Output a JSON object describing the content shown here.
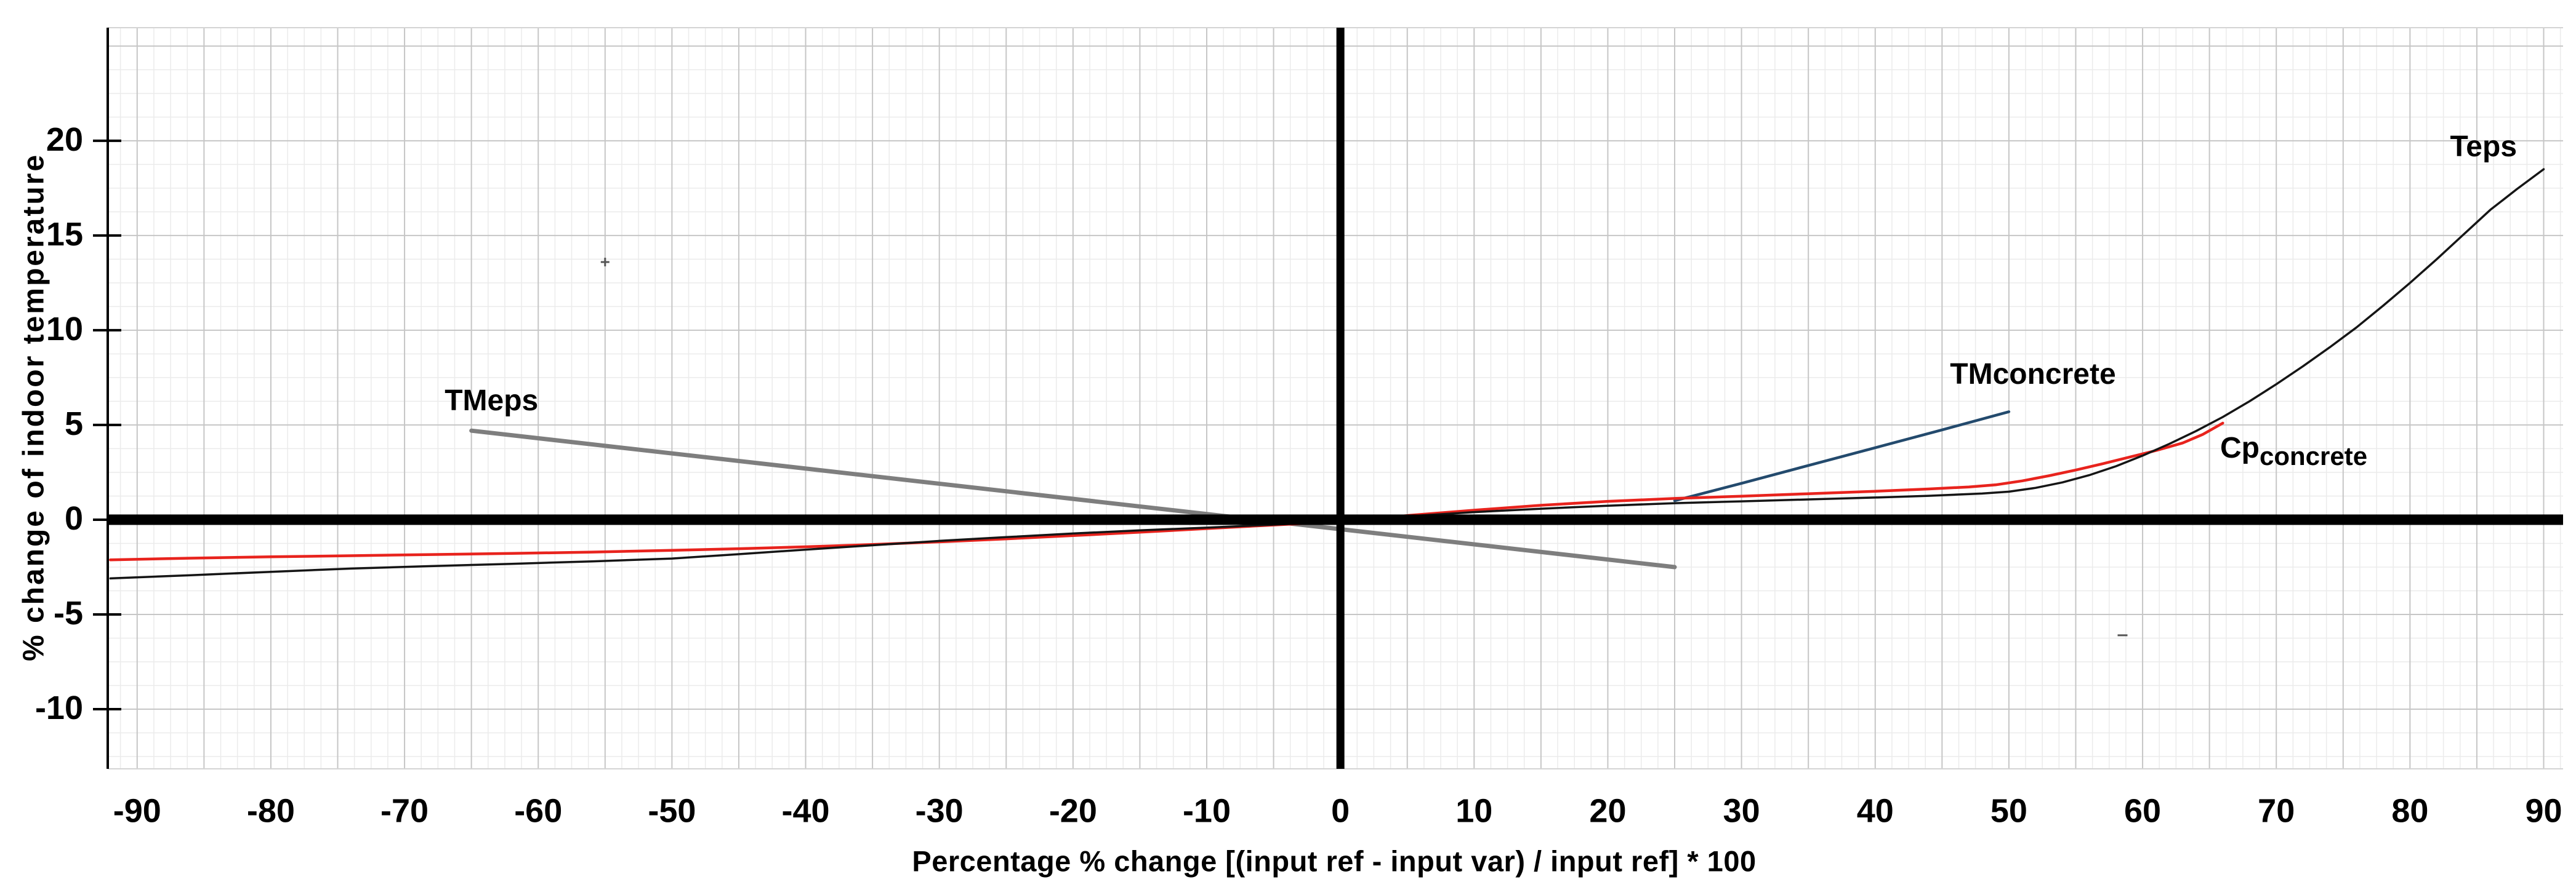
{
  "figure": {
    "background": "#ffffff",
    "text_color": "#000000"
  },
  "chart_data": {
    "type": "line",
    "title": "",
    "xlabel": "Percentage % change  [(input ref - input var) / input ref] * 100",
    "ylabel": "% change of indoor temperature",
    "xlim": [
      -92.2,
      91.45
    ],
    "ylim": [
      -13.15,
      25.97
    ],
    "x_tick_labels": [
      -90,
      -80,
      -70,
      -60,
      -50,
      -40,
      -30,
      -20,
      -10,
      0,
      10,
      20,
      30,
      40,
      50,
      60,
      70,
      80,
      90
    ],
    "y_tick_labels": [
      20,
      15,
      10,
      5,
      0,
      -5,
      -10
    ],
    "grid": {
      "on": true,
      "minor_step": 1.25,
      "major_step": 5,
      "minor_color": "#ebebeb",
      "major_color": "#c6c6c6",
      "border_color": "#d4d4d4"
    },
    "axes": {
      "zero_line_color": "#000000",
      "left_axis_color": "#000000"
    },
    "legend_position": "inline-labels",
    "series": [
      {
        "name": "TMeps",
        "color": "#7e7e7e",
        "width": 7,
        "label": {
          "text": "TMeps",
          "x": -63.5,
          "y": 6.2,
          "anchor": "middle"
        },
        "points": [
          [
            -65,
            4.7
          ],
          [
            25,
            -2.5
          ]
        ]
      },
      {
        "name": "TMconcrete",
        "color": "#234a6d",
        "width": 4.5,
        "label": {
          "text": "TMconcrete",
          "x": 51.8,
          "y": 7.6,
          "anchor": "middle"
        },
        "points": [
          [
            25,
            1.0
          ],
          [
            30,
            1.92
          ],
          [
            35,
            2.86
          ],
          [
            40,
            3.8
          ],
          [
            45,
            4.74
          ],
          [
            50,
            5.7
          ]
        ]
      },
      {
        "name": "Cpconcrete",
        "color": "#e8231d",
        "width": 4.5,
        "label": {
          "text": "Cp",
          "sub": "concrete",
          "x": 65.8,
          "y": 3.7,
          "anchor": "start"
        },
        "points": [
          [
            -92,
            -2.12
          ],
          [
            -86,
            -2.03
          ],
          [
            -80,
            -1.96
          ],
          [
            -74,
            -1.9
          ],
          [
            -68,
            -1.84
          ],
          [
            -62,
            -1.78
          ],
          [
            -56,
            -1.71
          ],
          [
            -50,
            -1.62
          ],
          [
            -45,
            -1.53
          ],
          [
            -40,
            -1.43
          ],
          [
            -35,
            -1.31
          ],
          [
            -30,
            -1.17
          ],
          [
            -25,
            -1.01
          ],
          [
            -20,
            -0.84
          ],
          [
            -15,
            -0.66
          ],
          [
            -10,
            -0.47
          ],
          [
            -5,
            -0.28
          ],
          [
            0,
            -0.1
          ],
          [
            5,
            0.22
          ],
          [
            10,
            0.5
          ],
          [
            15,
            0.76
          ],
          [
            20,
            0.97
          ],
          [
            25,
            1.12
          ],
          [
            30,
            1.24
          ],
          [
            35,
            1.37
          ],
          [
            40,
            1.5
          ],
          [
            44,
            1.62
          ],
          [
            47,
            1.73
          ],
          [
            49,
            1.84
          ],
          [
            51,
            2.05
          ],
          [
            53,
            2.32
          ],
          [
            55,
            2.62
          ],
          [
            57,
            2.95
          ],
          [
            59,
            3.3
          ],
          [
            61,
            3.65
          ],
          [
            63,
            4.05
          ],
          [
            64.5,
            4.5
          ],
          [
            66,
            5.1
          ]
        ]
      },
      {
        "name": "Teps",
        "color": "#151515",
        "width": 3.5,
        "label": {
          "text": "Teps",
          "x": 85.5,
          "y": 19.6,
          "anchor": "middle"
        },
        "points": [
          [
            -92,
            -3.1
          ],
          [
            -86,
            -2.93
          ],
          [
            -80,
            -2.75
          ],
          [
            -74,
            -2.58
          ],
          [
            -68,
            -2.45
          ],
          [
            -62,
            -2.33
          ],
          [
            -56,
            -2.2
          ],
          [
            -50,
            -2.05
          ],
          [
            -45,
            -1.82
          ],
          [
            -40,
            -1.58
          ],
          [
            -35,
            -1.35
          ],
          [
            -30,
            -1.12
          ],
          [
            -25,
            -0.92
          ],
          [
            -20,
            -0.73
          ],
          [
            -15,
            -0.56
          ],
          [
            -10,
            -0.42
          ],
          [
            -5,
            -0.26
          ],
          [
            0,
            -0.1
          ],
          [
            5,
            0.18
          ],
          [
            10,
            0.4
          ],
          [
            15,
            0.58
          ],
          [
            20,
            0.74
          ],
          [
            25,
            0.87
          ],
          [
            30,
            0.97
          ],
          [
            35,
            1.07
          ],
          [
            40,
            1.17
          ],
          [
            44,
            1.26
          ],
          [
            48,
            1.38
          ],
          [
            50,
            1.48
          ],
          [
            52,
            1.68
          ],
          [
            54,
            1.97
          ],
          [
            56,
            2.35
          ],
          [
            58,
            2.82
          ],
          [
            60,
            3.38
          ],
          [
            62,
            4.0
          ],
          [
            64,
            4.68
          ],
          [
            66,
            5.42
          ],
          [
            68,
            6.25
          ],
          [
            70,
            7.15
          ],
          [
            72,
            8.1
          ],
          [
            74,
            9.1
          ],
          [
            76,
            10.15
          ],
          [
            78,
            11.3
          ],
          [
            80,
            12.5
          ],
          [
            82,
            13.75
          ],
          [
            84,
            15.05
          ],
          [
            86,
            16.35
          ],
          [
            88,
            17.45
          ],
          [
            90,
            18.5
          ]
        ]
      }
    ],
    "artifacts": [
      {
        "type": "plus",
        "x": -55,
        "y": 13.6,
        "color": "#555555"
      },
      {
        "type": "dash",
        "x": 58.5,
        "y": -6.1,
        "color": "#555555"
      }
    ]
  }
}
